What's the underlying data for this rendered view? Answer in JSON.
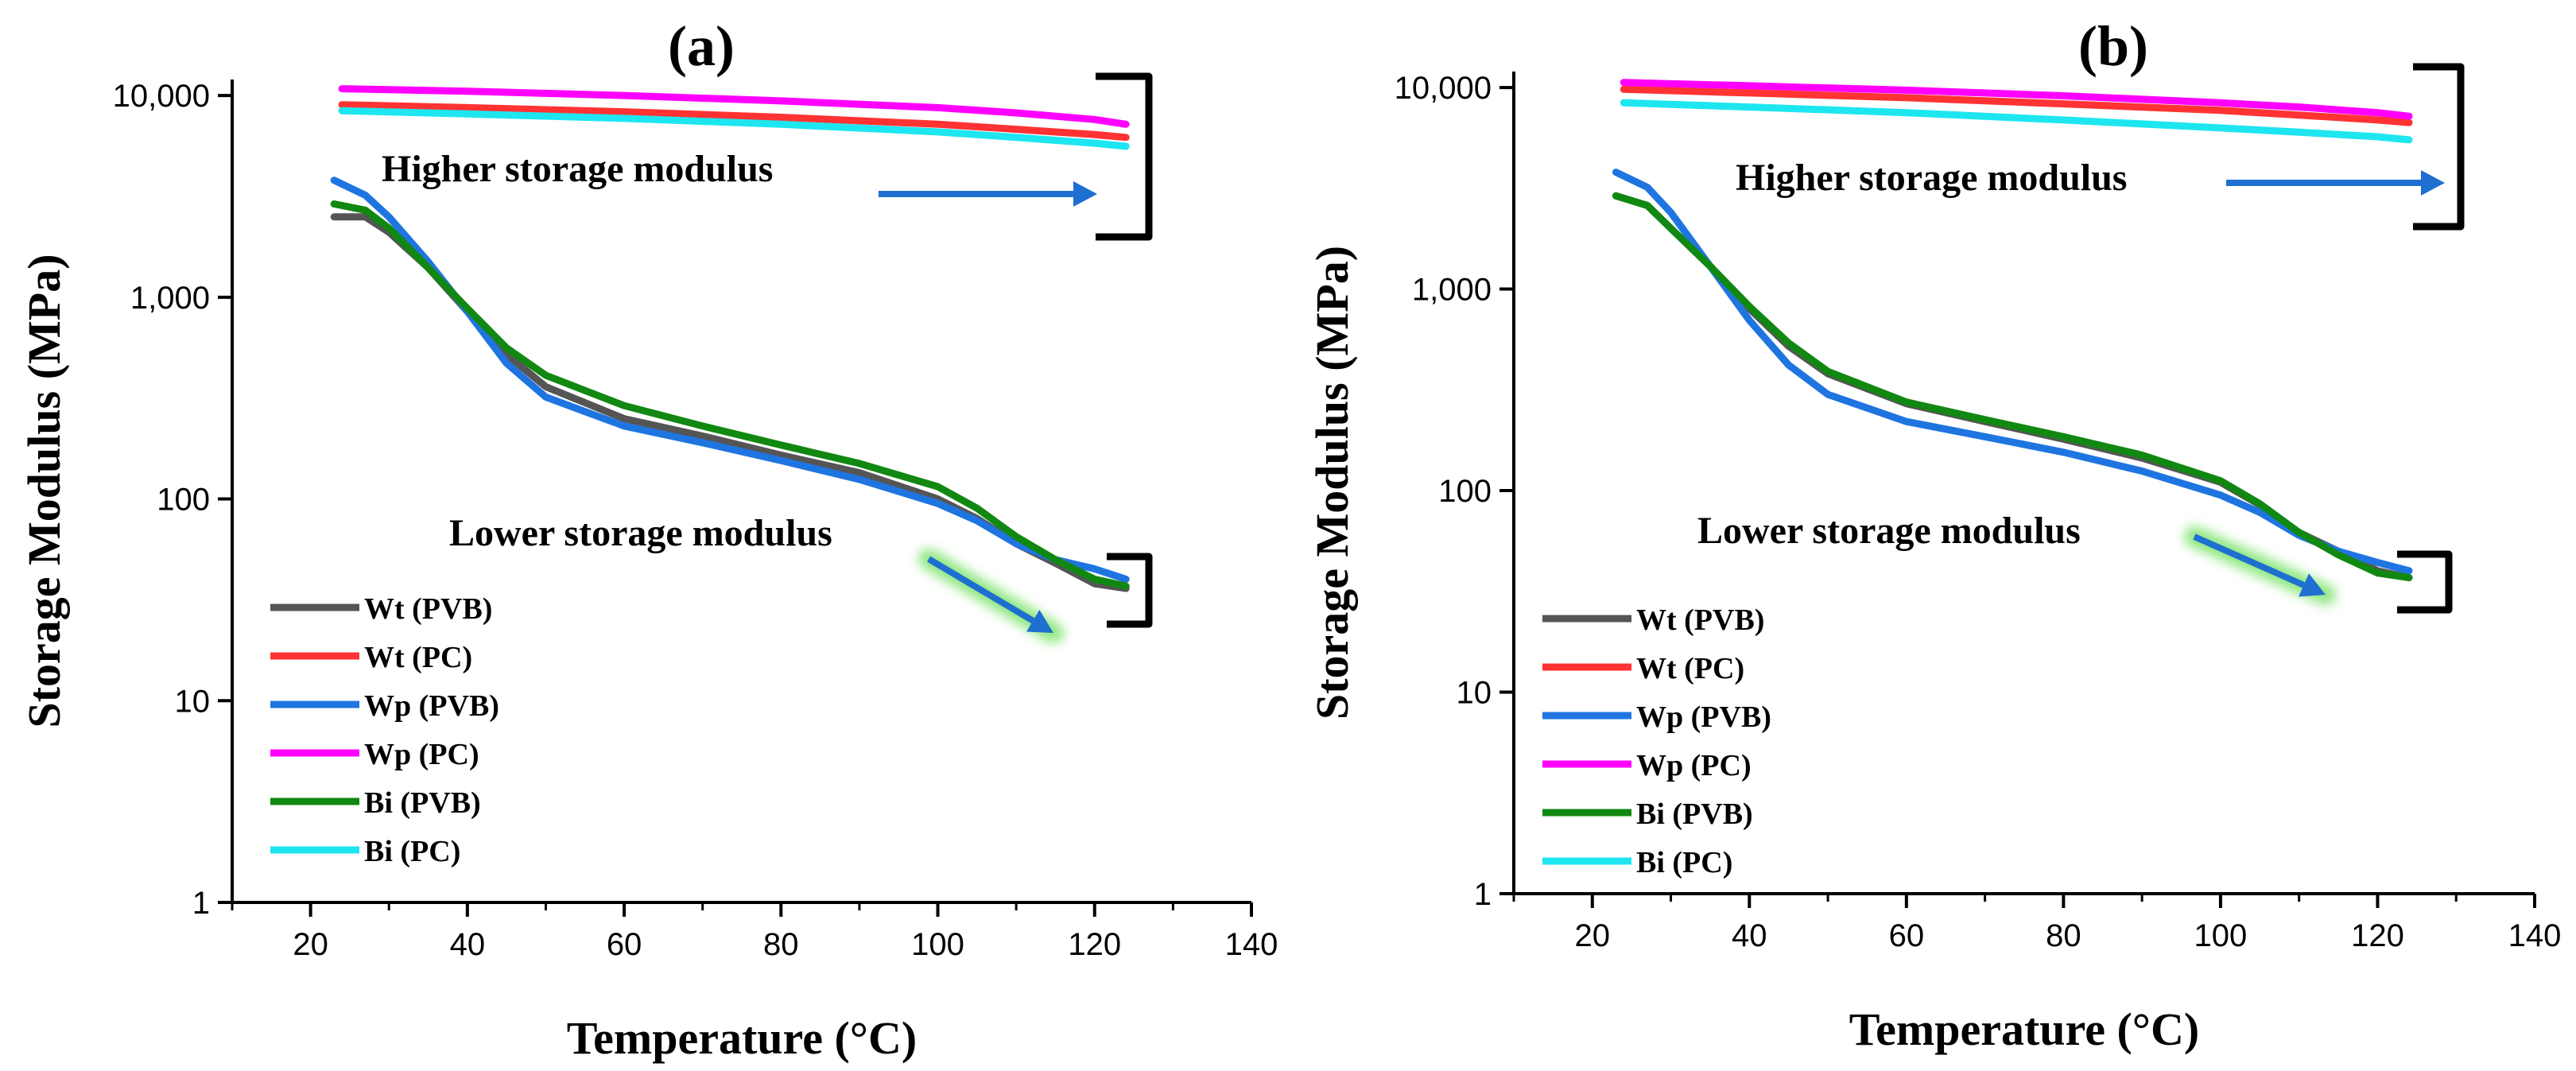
{
  "chart_data": [
    {
      "type": "line",
      "title": "(a)",
      "xlabel": "Temperature (°C)",
      "ylabel": "Storage Modulus (MPa)",
      "xlim": [
        10,
        140
      ],
      "ylim": [
        1,
        12000
      ],
      "yscale": "log",
      "xticks": [
        20,
        40,
        60,
        80,
        100,
        120,
        140
      ],
      "yticks": [
        1,
        10,
        100,
        1000,
        10000
      ],
      "yticklabels": [
        "1",
        "10",
        "100",
        "1,000",
        "10,000"
      ],
      "legend_position": "lower-left",
      "annotations": {
        "higher": "Higher storage modulus",
        "lower": "Lower storage modulus"
      },
      "series": [
        {
          "name": "Wt (PVB)",
          "color": "#555555",
          "x": [
            23,
            27,
            30,
            35,
            40,
            45,
            50,
            60,
            70,
            80,
            90,
            100,
            105,
            110,
            115,
            120,
            124
          ],
          "y": [
            2500,
            2500,
            2100,
            1400,
            850,
            520,
            360,
            250,
            205,
            165,
            135,
            100,
            80,
            60,
            48,
            38,
            36
          ]
        },
        {
          "name": "Wt (PC)",
          "color": "#ff3333",
          "x": [
            24,
            40,
            60,
            80,
            100,
            110,
            120,
            124
          ],
          "y": [
            9000,
            8700,
            8300,
            7800,
            7200,
            6800,
            6400,
            6200
          ]
        },
        {
          "name": "Wp (PVB)",
          "color": "#1f75e0",
          "x": [
            23,
            27,
            30,
            35,
            40,
            45,
            50,
            60,
            70,
            80,
            90,
            100,
            105,
            110,
            115,
            120,
            124
          ],
          "y": [
            3800,
            3200,
            2500,
            1500,
            850,
            470,
            320,
            230,
            190,
            155,
            125,
            95,
            78,
            60,
            50,
            45,
            40
          ]
        },
        {
          "name": "Wp (PC)",
          "color": "#ff00ff",
          "x": [
            24,
            40,
            60,
            80,
            100,
            110,
            120,
            124
          ],
          "y": [
            10800,
            10500,
            10000,
            9400,
            8700,
            8200,
            7600,
            7200
          ]
        },
        {
          "name": "Bi (PVB)",
          "color": "#118811",
          "x": [
            23,
            27,
            30,
            35,
            40,
            45,
            50,
            60,
            70,
            80,
            90,
            100,
            105,
            110,
            115,
            120,
            124
          ],
          "y": [
            2900,
            2700,
            2200,
            1400,
            880,
            560,
            410,
            290,
            230,
            185,
            150,
            115,
            90,
            65,
            50,
            40,
            37
          ]
        },
        {
          "name": "Bi (PC)",
          "color": "#1ee6f0",
          "x": [
            24,
            40,
            60,
            80,
            100,
            110,
            120,
            124
          ],
          "y": [
            8400,
            8100,
            7700,
            7200,
            6600,
            6200,
            5800,
            5600
          ]
        }
      ]
    },
    {
      "type": "line",
      "title": "(b)",
      "xlabel": "Temperature (°C)",
      "ylabel": "Storage Modulus (MPa)",
      "xlim": [
        10,
        140
      ],
      "ylim": [
        1,
        12000
      ],
      "yscale": "log",
      "xticks": [
        20,
        40,
        60,
        80,
        100,
        120,
        140
      ],
      "yticks": [
        1,
        10,
        100,
        1000,
        10000
      ],
      "yticklabels": [
        "1",
        "10",
        "100",
        "1,000",
        "10,000"
      ],
      "legend_position": "lower-left",
      "annotations": {
        "higher": "Higher storage modulus",
        "lower": "Lower storage modulus"
      },
      "series": [
        {
          "name": "Wt (PVB)",
          "color": "#555555",
          "x": [
            23,
            27,
            30,
            35,
            40,
            45,
            50,
            60,
            70,
            80,
            90,
            100,
            105,
            110,
            115,
            120,
            124
          ],
          "y": [
            2900,
            2600,
            2000,
            1300,
            800,
            520,
            380,
            270,
            220,
            180,
            145,
            110,
            85,
            62,
            50,
            40,
            37
          ]
        },
        {
          "name": "Wt (PC)",
          "color": "#ff3333",
          "x": [
            24,
            40,
            60,
            80,
            100,
            110,
            120,
            124
          ],
          "y": [
            9800,
            9400,
            8900,
            8300,
            7700,
            7300,
            6900,
            6700
          ]
        },
        {
          "name": "Wp (PVB)",
          "color": "#1f75e0",
          "x": [
            23,
            27,
            30,
            35,
            40,
            45,
            50,
            60,
            70,
            80,
            90,
            100,
            105,
            110,
            115,
            120,
            124
          ],
          "y": [
            3800,
            3200,
            2400,
            1300,
            700,
            420,
            300,
            220,
            185,
            155,
            125,
            95,
            78,
            60,
            50,
            44,
            40
          ]
        },
        {
          "name": "Wp (PC)",
          "color": "#ff00ff",
          "x": [
            24,
            40,
            60,
            80,
            100,
            110,
            120,
            124
          ],
          "y": [
            10600,
            10200,
            9700,
            9100,
            8400,
            8000,
            7500,
            7200
          ]
        },
        {
          "name": "Bi (PVB)",
          "color": "#118811",
          "x": [
            23,
            27,
            30,
            35,
            40,
            45,
            50,
            60,
            70,
            80,
            90,
            100,
            105,
            110,
            115,
            120,
            124
          ],
          "y": [
            2900,
            2600,
            2000,
            1300,
            820,
            540,
            390,
            275,
            225,
            185,
            150,
            112,
            86,
            62,
            48,
            39,
            37
          ]
        },
        {
          "name": "Bi (PC)",
          "color": "#1ee6f0",
          "x": [
            24,
            40,
            60,
            80,
            100,
            110,
            120,
            124
          ],
          "y": [
            8400,
            8000,
            7500,
            6900,
            6300,
            6000,
            5700,
            5500
          ]
        }
      ]
    }
  ]
}
